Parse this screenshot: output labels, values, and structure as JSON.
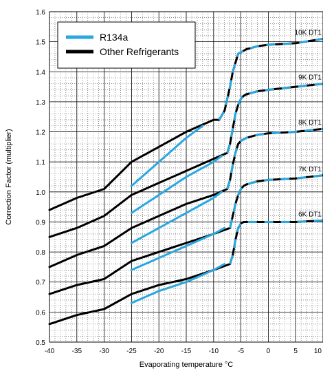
{
  "chart_data": {
    "type": "line",
    "xlabel": "Evaporating temperature °C",
    "ylabel": "Correction Factor (multiplier)",
    "xlim": [
      -40,
      10
    ],
    "ylim": [
      0.5,
      1.6
    ],
    "xticks": [
      -40,
      -35,
      -30,
      -25,
      -20,
      -15,
      -10,
      -5,
      0,
      5,
      10
    ],
    "yticks": [
      0.5,
      0.6,
      0.7,
      0.8,
      0.9,
      1.0,
      1.1,
      1.2,
      1.3,
      1.4,
      1.5,
      1.6
    ],
    "xtick_labels": [
      "-40",
      "-35",
      "-30",
      "-25",
      "-20",
      "-15",
      "-10",
      "-5",
      "0",
      "5",
      "10"
    ],
    "ytick_labels": [
      "0.5",
      "0.6",
      "0.7",
      "0.8",
      "0.9",
      "1.0",
      "1.1",
      "1.2",
      "1.3",
      "1.4",
      "1.5",
      "1.6"
    ],
    "grid": true,
    "legend_position": "top-left",
    "legend": [
      {
        "label": "R134a",
        "color": "#29a8e0"
      },
      {
        "label": "Other Refrigerants",
        "color": "#000000"
      }
    ],
    "colors": {
      "r134a": "#29a8e0",
      "other": "#000000"
    },
    "curves": [
      {
        "label": "10K DT1",
        "other": {
          "x": [
            -40,
            -35,
            -30,
            -25,
            -20,
            -15,
            -10,
            -9
          ],
          "y": [
            0.94,
            0.98,
            1.01,
            1.1,
            1.15,
            1.2,
            1.24,
            1.24
          ]
        },
        "r134a_low": {
          "x": [
            -25,
            -20,
            -15,
            -12
          ],
          "y": [
            1.02,
            1.1,
            1.18,
            1.22
          ]
        },
        "transition": {
          "x": [
            -9,
            -8,
            -7.5,
            -7,
            -6.5,
            -6,
            -5.5,
            -5,
            -4.5,
            -4,
            -3,
            -2,
            0,
            5,
            10
          ],
          "y": [
            1.24,
            1.27,
            1.31,
            1.35,
            1.4,
            1.43,
            1.46,
            1.465,
            1.47,
            1.475,
            1.48,
            1.485,
            1.49,
            1.495,
            1.51
          ]
        }
      },
      {
        "label": "9K DT1",
        "other": {
          "x": [
            -40,
            -35,
            -30,
            -25,
            -20,
            -15,
            -10,
            -7.5
          ],
          "y": [
            0.85,
            0.88,
            0.92,
            0.99,
            1.03,
            1.07,
            1.11,
            1.13
          ]
        },
        "r134a_low": {
          "x": [
            -25,
            -20,
            -15,
            -10,
            -8.5
          ],
          "y": [
            0.93,
            0.99,
            1.05,
            1.1,
            1.12
          ]
        },
        "transition": {
          "x": [
            -7.5,
            -7,
            -6.5,
            -6,
            -5.5,
            -5,
            -4.5,
            -4,
            -3,
            -2,
            0,
            5,
            10
          ],
          "y": [
            1.13,
            1.16,
            1.21,
            1.26,
            1.29,
            1.31,
            1.32,
            1.325,
            1.33,
            1.335,
            1.34,
            1.35,
            1.36
          ]
        }
      },
      {
        "label": "8K DT1",
        "other": {
          "x": [
            -40,
            -35,
            -30,
            -25,
            -20,
            -15,
            -10,
            -7.5
          ],
          "y": [
            0.75,
            0.79,
            0.82,
            0.88,
            0.92,
            0.96,
            0.99,
            1.01
          ]
        },
        "r134a_low": {
          "x": [
            -25,
            -20,
            -15,
            -10,
            -8.5
          ],
          "y": [
            0.83,
            0.88,
            0.93,
            0.98,
            1.0
          ]
        },
        "transition": {
          "x": [
            -7.5,
            -7,
            -6.5,
            -6,
            -5.5,
            -5,
            -4.5,
            -4,
            -3,
            -2,
            0,
            5,
            10
          ],
          "y": [
            1.01,
            1.04,
            1.09,
            1.13,
            1.16,
            1.17,
            1.175,
            1.18,
            1.185,
            1.19,
            1.195,
            1.2,
            1.21
          ]
        }
      },
      {
        "label": "7K DT1",
        "other": {
          "x": [
            -40,
            -35,
            -30,
            -25,
            -20,
            -15,
            -10,
            -7
          ],
          "y": [
            0.66,
            0.69,
            0.71,
            0.77,
            0.8,
            0.83,
            0.86,
            0.88
          ]
        },
        "r134a_low": {
          "x": [
            -25,
            -20,
            -15,
            -10,
            -8
          ],
          "y": [
            0.74,
            0.78,
            0.82,
            0.86,
            0.88
          ]
        },
        "transition": {
          "x": [
            -7,
            -6.5,
            -6,
            -5.5,
            -5,
            -4.5,
            -4,
            -3,
            -2,
            0,
            5,
            10
          ],
          "y": [
            0.88,
            0.92,
            0.96,
            0.99,
            1.01,
            1.02,
            1.025,
            1.03,
            1.035,
            1.04,
            1.045,
            1.055
          ]
        }
      },
      {
        "label": "6K DT1",
        "other": {
          "x": [
            -40,
            -35,
            -30,
            -25,
            -20,
            -15,
            -10,
            -7
          ],
          "y": [
            0.56,
            0.59,
            0.61,
            0.66,
            0.69,
            0.71,
            0.74,
            0.76
          ]
        },
        "r134a_low": {
          "x": [
            -25,
            -20,
            -15,
            -10,
            -8
          ],
          "y": [
            0.63,
            0.67,
            0.7,
            0.74,
            0.76
          ]
        },
        "transition": {
          "x": [
            -7,
            -6.5,
            -6,
            -5.5,
            -5,
            -4.5,
            -4,
            -3,
            -2,
            0,
            5,
            10
          ],
          "y": [
            0.76,
            0.79,
            0.84,
            0.88,
            0.895,
            0.9,
            0.9,
            0.9,
            0.9,
            0.9,
            0.9,
            0.905
          ]
        }
      }
    ]
  }
}
